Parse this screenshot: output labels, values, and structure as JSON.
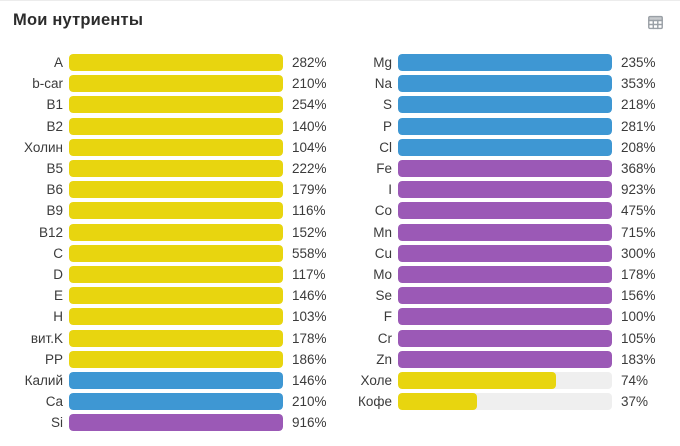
{
  "header": {
    "title": "Мои нутриенты",
    "table_view_icon": "table-icon"
  },
  "colors": {
    "yellow": "#e8d50f",
    "blue": "#3e97d3",
    "purple": "#9b59b6",
    "track": "#efefef",
    "text": "#3b3b3b",
    "title": "#2c2c2c",
    "icon": "#9aa0a6"
  },
  "chart_data": {
    "type": "bar",
    "orientation": "horizontal",
    "title": "Мои нутриенты",
    "value_unit": "%",
    "bar_cap_percent": 100,
    "legend": "none",
    "columns": [
      {
        "name": "left",
        "rows": [
          {
            "label": "A",
            "value": 282,
            "color": "yellow"
          },
          {
            "label": "b-car",
            "value": 210,
            "color": "yellow"
          },
          {
            "label": "B1",
            "value": 254,
            "color": "yellow"
          },
          {
            "label": "B2",
            "value": 140,
            "color": "yellow"
          },
          {
            "label": "Холин",
            "value": 104,
            "color": "yellow"
          },
          {
            "label": "B5",
            "value": 222,
            "color": "yellow"
          },
          {
            "label": "B6",
            "value": 179,
            "color": "yellow"
          },
          {
            "label": "B9",
            "value": 116,
            "color": "yellow"
          },
          {
            "label": "B12",
            "value": 152,
            "color": "yellow"
          },
          {
            "label": "C",
            "value": 558,
            "color": "yellow"
          },
          {
            "label": "D",
            "value": 117,
            "color": "yellow"
          },
          {
            "label": "E",
            "value": 146,
            "color": "yellow"
          },
          {
            "label": "H",
            "value": 103,
            "color": "yellow"
          },
          {
            "label": "вит.K",
            "value": 178,
            "color": "yellow"
          },
          {
            "label": "PP",
            "value": 186,
            "color": "yellow"
          },
          {
            "label": "Калий",
            "value": 146,
            "color": "blue"
          },
          {
            "label": "Ca",
            "value": 210,
            "color": "blue"
          },
          {
            "label": "Si",
            "value": 916,
            "color": "purple"
          }
        ]
      },
      {
        "name": "right",
        "rows": [
          {
            "label": "Mg",
            "value": 235,
            "color": "blue"
          },
          {
            "label": "Na",
            "value": 353,
            "color": "blue"
          },
          {
            "label": "S",
            "value": 218,
            "color": "blue"
          },
          {
            "label": "P",
            "value": 281,
            "color": "blue"
          },
          {
            "label": "Cl",
            "value": 208,
            "color": "blue"
          },
          {
            "label": "Fe",
            "value": 368,
            "color": "purple"
          },
          {
            "label": "I",
            "value": 923,
            "color": "purple"
          },
          {
            "label": "Co",
            "value": 475,
            "color": "purple"
          },
          {
            "label": "Mn",
            "value": 715,
            "color": "purple"
          },
          {
            "label": "Cu",
            "value": 300,
            "color": "purple"
          },
          {
            "label": "Mo",
            "value": 178,
            "color": "purple"
          },
          {
            "label": "Se",
            "value": 156,
            "color": "purple"
          },
          {
            "label": "F",
            "value": 100,
            "color": "purple"
          },
          {
            "label": "Cr",
            "value": 105,
            "color": "purple"
          },
          {
            "label": "Zn",
            "value": 183,
            "color": "purple"
          },
          {
            "label": "Холе",
            "value": 74,
            "color": "yellow"
          },
          {
            "label": "Кофе",
            "value": 37,
            "color": "yellow"
          }
        ]
      }
    ]
  }
}
